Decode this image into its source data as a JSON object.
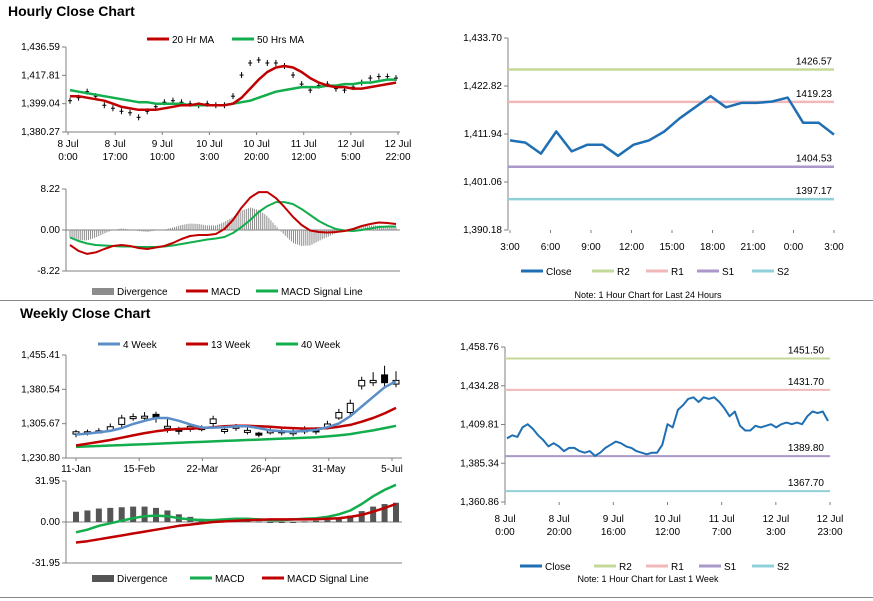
{
  "colors": {
    "red": "#c00000",
    "green": "#12ad4c",
    "blue": "#1f6fb4",
    "r2": "#c4d89a",
    "r1": "#f0b8b8",
    "s1": "#a998c8",
    "s2": "#8fd0d8",
    "grey": "#8c8c8c",
    "dark_bar": "#555555",
    "axis": "#808080"
  },
  "sections": {
    "hourly_title": "Hourly Close Chart",
    "weekly_title": "Weekly Close Chart"
  },
  "chart_data": [
    {
      "id": "hourly_price",
      "type": "candlestick+line",
      "legend": [
        "20 Hr MA",
        "50 Hrs MA"
      ],
      "ylim": [
        1380.27,
        1436.59
      ],
      "y_ticks": [
        "1,436.59",
        "1,417.81",
        "1,399.04",
        "1,380.27"
      ],
      "x_ticks": [
        [
          "8 Jul",
          "0:00"
        ],
        [
          "8 Jul",
          "17:00"
        ],
        [
          "9 Jul",
          "10:00"
        ],
        [
          "10 Jul",
          "3:00"
        ],
        [
          "10 Jul",
          "20:00"
        ],
        [
          "11 Jul",
          "12:00"
        ],
        [
          "12 Jul",
          "5:00"
        ],
        [
          "12 Jul",
          "22:00"
        ]
      ],
      "close": [
        1401,
        1403,
        1407,
        1404,
        1398,
        1396,
        1394,
        1393,
        1390,
        1394,
        1397,
        1400,
        1401,
        1400,
        1399,
        1398,
        1399,
        1398,
        1398,
        1404,
        1418,
        1426,
        1428,
        1426,
        1426,
        1424,
        1418,
        1412,
        1408,
        1411,
        1412,
        1409,
        1408,
        1410,
        1413,
        1416,
        1417,
        1417,
        1416
      ],
      "ma20": [
        1404,
        1404,
        1403,
        1402,
        1401,
        1399,
        1397,
        1396,
        1395,
        1395,
        1395,
        1396,
        1397,
        1398,
        1398,
        1399,
        1398,
        1398,
        1398,
        1399,
        1403,
        1409,
        1415,
        1420,
        1423,
        1424,
        1423,
        1420,
        1416,
        1413,
        1411,
        1410,
        1410,
        1409,
        1409,
        1410,
        1411,
        1412,
        1413
      ],
      "ma50": [
        1408,
        1407,
        1406,
        1405,
        1404,
        1403,
        1402,
        1401,
        1400,
        1400,
        1399,
        1399,
        1399,
        1399,
        1398,
        1398,
        1398,
        1398,
        1398,
        1399,
        1400,
        1401,
        1403,
        1405,
        1407,
        1408,
        1409,
        1410,
        1410,
        1410,
        1411,
        1411,
        1412,
        1412,
        1413,
        1413,
        1414,
        1415,
        1415
      ]
    },
    {
      "id": "hourly_macd",
      "type": "bar+line",
      "legend": [
        "Divergence",
        "MACD",
        "MACD Signal Line"
      ],
      "ylim": [
        -8.22,
        8.22
      ],
      "y_ticks": [
        "8.22",
        "0.00",
        "-8.22"
      ],
      "macd": [
        -3.0,
        -4.2,
        -4.8,
        -4.5,
        -3.8,
        -3.2,
        -3.0,
        -3.2,
        -3.6,
        -3.8,
        -3.5,
        -3.2,
        -2.6,
        -1.8,
        -1.2,
        -1.0,
        -1.0,
        -0.8,
        0.2,
        2.0,
        4.5,
        6.5,
        7.6,
        7.6,
        6.4,
        4.6,
        2.6,
        1.0,
        -0.1,
        -0.4,
        -0.5,
        -0.4,
        -0.2,
        0.2,
        0.8,
        1.2,
        1.5,
        1.4,
        1.2
      ],
      "signal": [
        -1.5,
        -2.2,
        -2.7,
        -3.0,
        -3.1,
        -3.2,
        -3.3,
        -3.3,
        -3.4,
        -3.4,
        -3.4,
        -3.3,
        -3.1,
        -2.8,
        -2.5,
        -2.2,
        -1.9,
        -1.7,
        -1.4,
        -0.6,
        0.6,
        2.0,
        3.6,
        4.8,
        5.6,
        5.6,
        5.2,
        4.2,
        3.0,
        1.8,
        0.9,
        0.2,
        -0.1,
        -0.2,
        0.0,
        0.3,
        0.6,
        0.7,
        0.7
      ],
      "divergence": [
        -1.5,
        -2.0,
        -2.1,
        -1.5,
        -0.7,
        0.0,
        0.3,
        0.1,
        -0.2,
        -0.4,
        -0.1,
        0.1,
        0.5,
        1.0,
        1.3,
        1.2,
        0.9,
        0.9,
        1.6,
        2.6,
        3.9,
        4.5,
        4.0,
        2.8,
        0.8,
        -1.0,
        -2.6,
        -3.2,
        -3.1,
        -2.2,
        -1.4,
        -0.6,
        -0.1,
        0.4,
        0.8,
        0.9,
        0.9,
        0.7,
        0.5
      ]
    },
    {
      "id": "hourly_levels",
      "type": "line",
      "ylim": [
        1390.18,
        1433.7
      ],
      "y_ticks": [
        "1,433.70",
        "1,422.82",
        "1,411.94",
        "1,401.06",
        "1,390.18"
      ],
      "x_ticks": [
        "3:00",
        "6:00",
        "9:00",
        "12:00",
        "15:00",
        "18:00",
        "21:00",
        "0:00",
        "3:00"
      ],
      "close": [
        1410.5,
        1410.0,
        1407.5,
        1412.5,
        1408.0,
        1409.5,
        1409.5,
        1407.0,
        1409.5,
        1410.5,
        1412.5,
        1415.5,
        1418.0,
        1420.5,
        1418.0,
        1419.0,
        1419.0,
        1419.3,
        1420.2,
        1414.5,
        1414.5,
        1411.8
      ],
      "levels": [
        {
          "name": "R2",
          "value": 1426.57,
          "label": "1426.57"
        },
        {
          "name": "R1",
          "value": 1419.23,
          "label": "1419.23"
        },
        {
          "name": "S1",
          "value": 1404.53,
          "label": "1404.53"
        },
        {
          "name": "S2",
          "value": 1397.17,
          "label": "1397.17"
        }
      ],
      "legend": [
        "Close",
        "R2",
        "R1",
        "S1",
        "S2"
      ],
      "note": "Note: 1 Hour Chart for Last 24 Hours"
    },
    {
      "id": "weekly_price",
      "type": "candlestick+line",
      "legend": [
        "4 Week",
        "13 Week",
        "40 Week"
      ],
      "ylim": [
        1230.8,
        1455.41
      ],
      "y_ticks": [
        "1,455.41",
        "1,380.54",
        "1,305.67",
        "1,230.80"
      ],
      "x_ticks": [
        "11-Jan",
        "15-Feb",
        "22-Mar",
        "26-Apr",
        "31-May",
        "5-Jul"
      ],
      "candles": [
        {
          "o": 1283,
          "c": 1288,
          "h": 1292,
          "l": 1276
        },
        {
          "o": 1286,
          "c": 1288,
          "h": 1293,
          "l": 1280
        },
        {
          "o": 1289,
          "c": 1290,
          "h": 1296,
          "l": 1284
        },
        {
          "o": 1291,
          "c": 1299,
          "h": 1306,
          "l": 1288
        },
        {
          "o": 1304,
          "c": 1318,
          "h": 1325,
          "l": 1298
        },
        {
          "o": 1318,
          "c": 1321,
          "h": 1328,
          "l": 1312
        },
        {
          "o": 1321,
          "c": 1322,
          "h": 1331,
          "l": 1314
        },
        {
          "o": 1326,
          "c": 1318,
          "h": 1332,
          "l": 1308
        },
        {
          "o": 1300,
          "c": 1300,
          "h": 1318,
          "l": 1286
        },
        {
          "o": 1294,
          "c": 1289,
          "h": 1299,
          "l": 1282
        },
        {
          "o": 1293,
          "c": 1300,
          "h": 1306,
          "l": 1288
        },
        {
          "o": 1297,
          "c": 1296,
          "h": 1302,
          "l": 1289
        },
        {
          "o": 1306,
          "c": 1316,
          "h": 1323,
          "l": 1300
        },
        {
          "o": 1293,
          "c": 1293,
          "h": 1298,
          "l": 1284
        },
        {
          "o": 1296,
          "c": 1300,
          "h": 1305,
          "l": 1290
        },
        {
          "o": 1289,
          "c": 1291,
          "h": 1298,
          "l": 1282
        },
        {
          "o": 1285,
          "c": 1281,
          "h": 1288,
          "l": 1276
        },
        {
          "o": 1286,
          "c": 1290,
          "h": 1296,
          "l": 1282
        },
        {
          "o": 1290,
          "c": 1288,
          "h": 1296,
          "l": 1280
        },
        {
          "o": 1284,
          "c": 1288,
          "h": 1296,
          "l": 1278
        },
        {
          "o": 1288,
          "c": 1295,
          "h": 1300,
          "l": 1283
        },
        {
          "o": 1292,
          "c": 1290,
          "h": 1298,
          "l": 1282
        },
        {
          "o": 1298,
          "c": 1305,
          "h": 1312,
          "l": 1293
        },
        {
          "o": 1318,
          "c": 1330,
          "h": 1338,
          "l": 1314
        },
        {
          "o": 1330,
          "c": 1350,
          "h": 1358,
          "l": 1325
        },
        {
          "o": 1388,
          "c": 1400,
          "h": 1408,
          "l": 1380
        },
        {
          "o": 1395,
          "c": 1400,
          "h": 1418,
          "l": 1388
        },
        {
          "o": 1412,
          "c": 1395,
          "h": 1432,
          "l": 1385
        },
        {
          "o": 1392,
          "c": 1400,
          "h": 1420,
          "l": 1385
        }
      ],
      "ma4": [
        1282,
        1284,
        1287,
        1290,
        1296,
        1305,
        1312,
        1318,
        1318,
        1312,
        1304,
        1297,
        1297,
        1298,
        1300,
        1300,
        1296,
        1291,
        1289,
        1288,
        1290,
        1292,
        1298,
        1306,
        1322,
        1343,
        1364,
        1385,
        1398
      ],
      "ma13": [
        1258,
        1262,
        1266,
        1270,
        1275,
        1280,
        1285,
        1289,
        1292,
        1294,
        1295,
        1296,
        1298,
        1300,
        1301,
        1301,
        1300,
        1299,
        1297,
        1296,
        1295,
        1295,
        1296,
        1299,
        1303,
        1310,
        1318,
        1328,
        1340
      ],
      "ma40": [
        1255,
        1256,
        1257,
        1258,
        1259,
        1260,
        1261,
        1262,
        1263,
        1264,
        1265,
        1266,
        1267,
        1268,
        1269,
        1270,
        1271,
        1272,
        1273,
        1274,
        1275,
        1276,
        1278,
        1280,
        1283,
        1287,
        1291,
        1296,
        1301
      ]
    },
    {
      "id": "weekly_macd",
      "type": "bar+line",
      "legend": [
        "Divergence",
        "MACD",
        "MACD Signal Line"
      ],
      "ylim": [
        -31.95,
        31.95
      ],
      "y_ticks": [
        "31.95",
        "0.00",
        "-31.95"
      ],
      "macd": [
        -8,
        -6,
        -3,
        -1,
        1,
        3,
        4.5,
        5,
        4.5,
        3,
        2,
        1.5,
        1.5,
        2,
        2.5,
        2.5,
        2,
        1.5,
        1.5,
        2,
        2.5,
        3,
        4,
        6,
        9,
        14,
        20,
        25,
        29
      ],
      "signal": [
        -16,
        -15,
        -13.5,
        -12,
        -10.5,
        -9,
        -7.5,
        -6,
        -4.5,
        -3,
        -2,
        -1,
        0,
        0.5,
        1,
        1.5,
        1.8,
        2,
        2,
        2,
        2,
        2.2,
        2.5,
        3,
        4,
        5.5,
        8,
        11,
        14
      ],
      "divergence": [
        8,
        9,
        10.5,
        11,
        11.5,
        12,
        12,
        11,
        9,
        6,
        4,
        2.5,
        1.5,
        1.5,
        1.5,
        1,
        0.5,
        -0.5,
        -0.5,
        0,
        0.5,
        1,
        1.5,
        3,
        5,
        8.5,
        12,
        14,
        15
      ]
    },
    {
      "id": "weekly_levels",
      "type": "line",
      "ylim": [
        1360.86,
        1458.76
      ],
      "y_ticks": [
        "1,458.76",
        "1,434.28",
        "1,409.81",
        "1,385.34",
        "1,360.86"
      ],
      "x_ticks": [
        [
          "8 Jul",
          "0:00"
        ],
        [
          "8 Jul",
          "20:00"
        ],
        [
          "9 Jul",
          "16:00"
        ],
        [
          "10 Jul",
          "12:00"
        ],
        [
          "11 Jul",
          "7:00"
        ],
        [
          "12 Jul",
          "3:00"
        ],
        [
          "12 Jul",
          "23:00"
        ]
      ],
      "close": [
        1401,
        1403,
        1402,
        1408,
        1410,
        1407,
        1403,
        1400,
        1396,
        1398,
        1396,
        1393,
        1395,
        1395,
        1393,
        1392,
        1393,
        1390,
        1392,
        1395,
        1397,
        1399,
        1398,
        1396,
        1395,
        1393,
        1392,
        1391,
        1392,
        1392,
        1397,
        1410,
        1408,
        1419,
        1422,
        1426,
        1427,
        1424,
        1427,
        1426,
        1427,
        1424,
        1420,
        1415,
        1418,
        1409,
        1406,
        1406,
        1409,
        1408,
        1409,
        1410,
        1408,
        1410,
        1411,
        1410,
        1411,
        1410,
        1415,
        1418,
        1417,
        1418,
        1412
      ],
      "levels": [
        {
          "name": "R2",
          "value": 1451.5,
          "label": "1451.50"
        },
        {
          "name": "R1",
          "value": 1431.7,
          "label": "1431.70"
        },
        {
          "name": "S1",
          "value": 1389.8,
          "label": "1389.80"
        },
        {
          "name": "S2",
          "value": 1367.7,
          "label": "1367.70"
        }
      ],
      "legend": [
        "Close",
        "R2",
        "R1",
        "S1",
        "S2"
      ],
      "note": "Note: 1 Hour Chart for Last 1 Week"
    }
  ]
}
